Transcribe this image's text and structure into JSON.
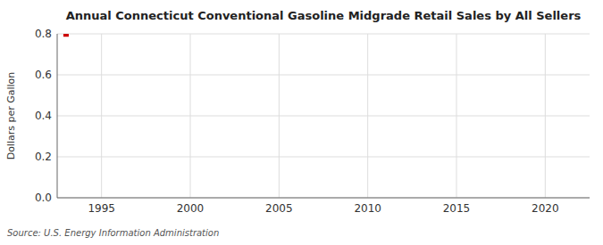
{
  "chart_data": {
    "type": "scatter",
    "title": "Annual Connecticut Conventional Gasoline Midgrade Retail Sales by All Sellers",
    "y_label": "Dollars per Gallon",
    "source": "Source: U.S. Energy Information Administration",
    "x": [
      1993
    ],
    "values": [
      0.799
    ],
    "color": "#cc0000",
    "marker": "square",
    "xlim": [
      1992.5,
      2022.5
    ],
    "ylim": [
      0.0,
      0.8
    ],
    "xticks": [
      1995,
      2000,
      2005,
      2010,
      2015,
      2020
    ],
    "yticks": [
      {
        "value": 0.0,
        "label": "0.0"
      },
      0.2,
      0.4,
      0.6,
      0.8
    ],
    "grid": true
  }
}
